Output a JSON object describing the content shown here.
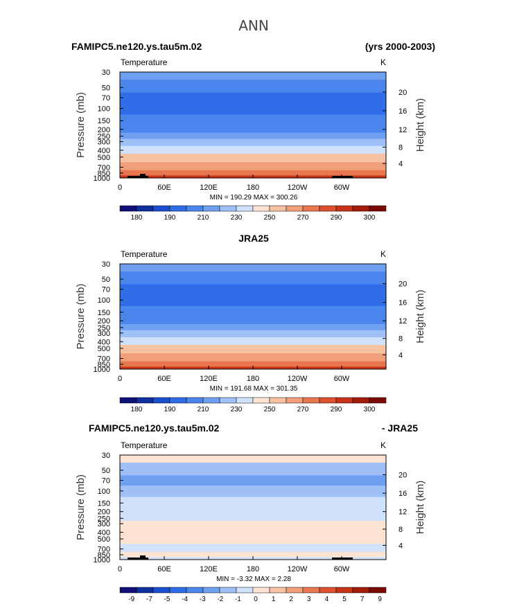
{
  "page_title": "ANN",
  "chart_data": [
    {
      "type": "heatmap",
      "left_title": "FAMIPC5.ne120.ys.tau5m.02",
      "right_title": "(yrs 2000-2003)",
      "center_title": "",
      "variable_label": "Temperature",
      "units": "K",
      "ylabel": "Pressure (mb)",
      "ylabel_right": "Height (km)",
      "x_ticks": [
        "0",
        "60E",
        "120E",
        "180",
        "120W",
        "60W"
      ],
      "y_ticks": [
        "30",
        "50",
        "70",
        "100",
        "150",
        "200",
        "250",
        "300",
        "400",
        "500",
        "700",
        "850",
        "1000"
      ],
      "height_ticks": [
        "4",
        "8",
        "12",
        "16",
        "20"
      ],
      "stats": "MIN = 190.29   MAX = 300.26",
      "colorbar_labels": [
        "180",
        "190",
        "210",
        "230",
        "250",
        "270",
        "290",
        "300"
      ],
      "colorbar_colors": [
        "#10107a",
        "#0e2fa0",
        "#1a4fd1",
        "#2f6ee8",
        "#4a86ee",
        "#6fa0f0",
        "#9ec0f6",
        "#cfe1fb",
        "#fde3d2",
        "#f7c2a2",
        "#f19e7a",
        "#e8774f",
        "#de5030",
        "#c83216",
        "#a41b0a",
        "#7c0a04"
      ],
      "profile_values": [
        {
          "pressure": 30,
          "temperature": 221
        },
        {
          "pressure": 50,
          "temperature": 213
        },
        {
          "pressure": 70,
          "temperature": 206
        },
        {
          "pressure": 100,
          "temperature": 205
        },
        {
          "pressure": 150,
          "temperature": 212
        },
        {
          "pressure": 200,
          "temperature": 219
        },
        {
          "pressure": 250,
          "temperature": 227
        },
        {
          "pressure": 300,
          "temperature": 235
        },
        {
          "pressure": 400,
          "temperature": 250
        },
        {
          "pressure": 500,
          "temperature": 261
        },
        {
          "pressure": 700,
          "temperature": 278
        },
        {
          "pressure": 850,
          "temperature": 288
        },
        {
          "pressure": 1000,
          "temperature": 296
        }
      ]
    },
    {
      "type": "heatmap",
      "left_title": "",
      "right_title": "",
      "center_title": "JRA25",
      "variable_label": "Temperature",
      "units": "K",
      "ylabel": "Pressure (mb)",
      "ylabel_right": "Height (km)",
      "x_ticks": [
        "0",
        "60E",
        "120E",
        "180",
        "120W",
        "60W"
      ],
      "y_ticks": [
        "30",
        "50",
        "70",
        "100",
        "150",
        "200",
        "250",
        "300",
        "400",
        "500",
        "700",
        "850",
        "1000"
      ],
      "height_ticks": [
        "4",
        "8",
        "12",
        "16",
        "20"
      ],
      "stats": "MIN = 191.68   MAX = 301.35",
      "colorbar_labels": [
        "180",
        "190",
        "210",
        "230",
        "250",
        "270",
        "290",
        "300"
      ],
      "colorbar_colors": [
        "#10107a",
        "#0e2fa0",
        "#1a4fd1",
        "#2f6ee8",
        "#4a86ee",
        "#6fa0f0",
        "#9ec0f6",
        "#cfe1fb",
        "#fde3d2",
        "#f7c2a2",
        "#f19e7a",
        "#e8774f",
        "#de5030",
        "#c83216",
        "#a41b0a",
        "#7c0a04"
      ],
      "profile_values": [
        {
          "pressure": 30,
          "temperature": 221
        },
        {
          "pressure": 50,
          "temperature": 213
        },
        {
          "pressure": 70,
          "temperature": 206
        },
        {
          "pressure": 100,
          "temperature": 205
        },
        {
          "pressure": 150,
          "temperature": 212
        },
        {
          "pressure": 200,
          "temperature": 219
        },
        {
          "pressure": 250,
          "temperature": 227
        },
        {
          "pressure": 300,
          "temperature": 235
        },
        {
          "pressure": 400,
          "temperature": 250
        },
        {
          "pressure": 500,
          "temperature": 261
        },
        {
          "pressure": 700,
          "temperature": 279
        },
        {
          "pressure": 850,
          "temperature": 289
        },
        {
          "pressure": 1000,
          "temperature": 297
        }
      ]
    },
    {
      "type": "heatmap",
      "left_title": "FAMIPC5.ne120.ys.tau5m.02",
      "right_title": "- JRA25",
      "center_title": "",
      "variable_label": "Temperature",
      "units": "K",
      "ylabel": "Pressure (mb)",
      "ylabel_right": "Height (km)",
      "x_ticks": [
        "0",
        "60E",
        "120E",
        "180",
        "120W",
        "60W"
      ],
      "y_ticks": [
        "30",
        "50",
        "70",
        "100",
        "150",
        "200",
        "250",
        "300",
        "400",
        "500",
        "700",
        "850",
        "1000"
      ],
      "height_ticks": [
        "4",
        "8",
        "12",
        "16",
        "20"
      ],
      "stats": "MIN =  -3.32   MAX =    2.28",
      "colorbar_labels": [
        "-9",
        "-7",
        "-5",
        "-4",
        "-3",
        "-2",
        "-1",
        "0",
        "1",
        "2",
        "3",
        "4",
        "5",
        "7",
        "9"
      ],
      "colorbar_colors": [
        "#10107a",
        "#0e2fa0",
        "#1a4fd1",
        "#2f6ee8",
        "#4a86ee",
        "#6fa0f0",
        "#9ec0f6",
        "#cfe1fb",
        "#fde3d2",
        "#f7c2a2",
        "#f19e7a",
        "#e8774f",
        "#de5030",
        "#c83216",
        "#a41b0a",
        "#7c0a04"
      ],
      "profile_values": [
        {
          "pressure": 30,
          "difference": 0.5
        },
        {
          "pressure": 50,
          "difference": -1.5
        },
        {
          "pressure": 70,
          "difference": -2.5
        },
        {
          "pressure": 100,
          "difference": -1.5
        },
        {
          "pressure": 150,
          "difference": -0.5
        },
        {
          "pressure": 200,
          "difference": -0.5
        },
        {
          "pressure": 250,
          "difference": -0.5
        },
        {
          "pressure": 300,
          "difference": 0.5
        },
        {
          "pressure": 400,
          "difference": 0.5
        },
        {
          "pressure": 500,
          "difference": 0.5
        },
        {
          "pressure": 700,
          "difference": -0.5
        },
        {
          "pressure": 850,
          "difference": 0.5
        },
        {
          "pressure": 1000,
          "difference": -0.5
        }
      ]
    }
  ]
}
